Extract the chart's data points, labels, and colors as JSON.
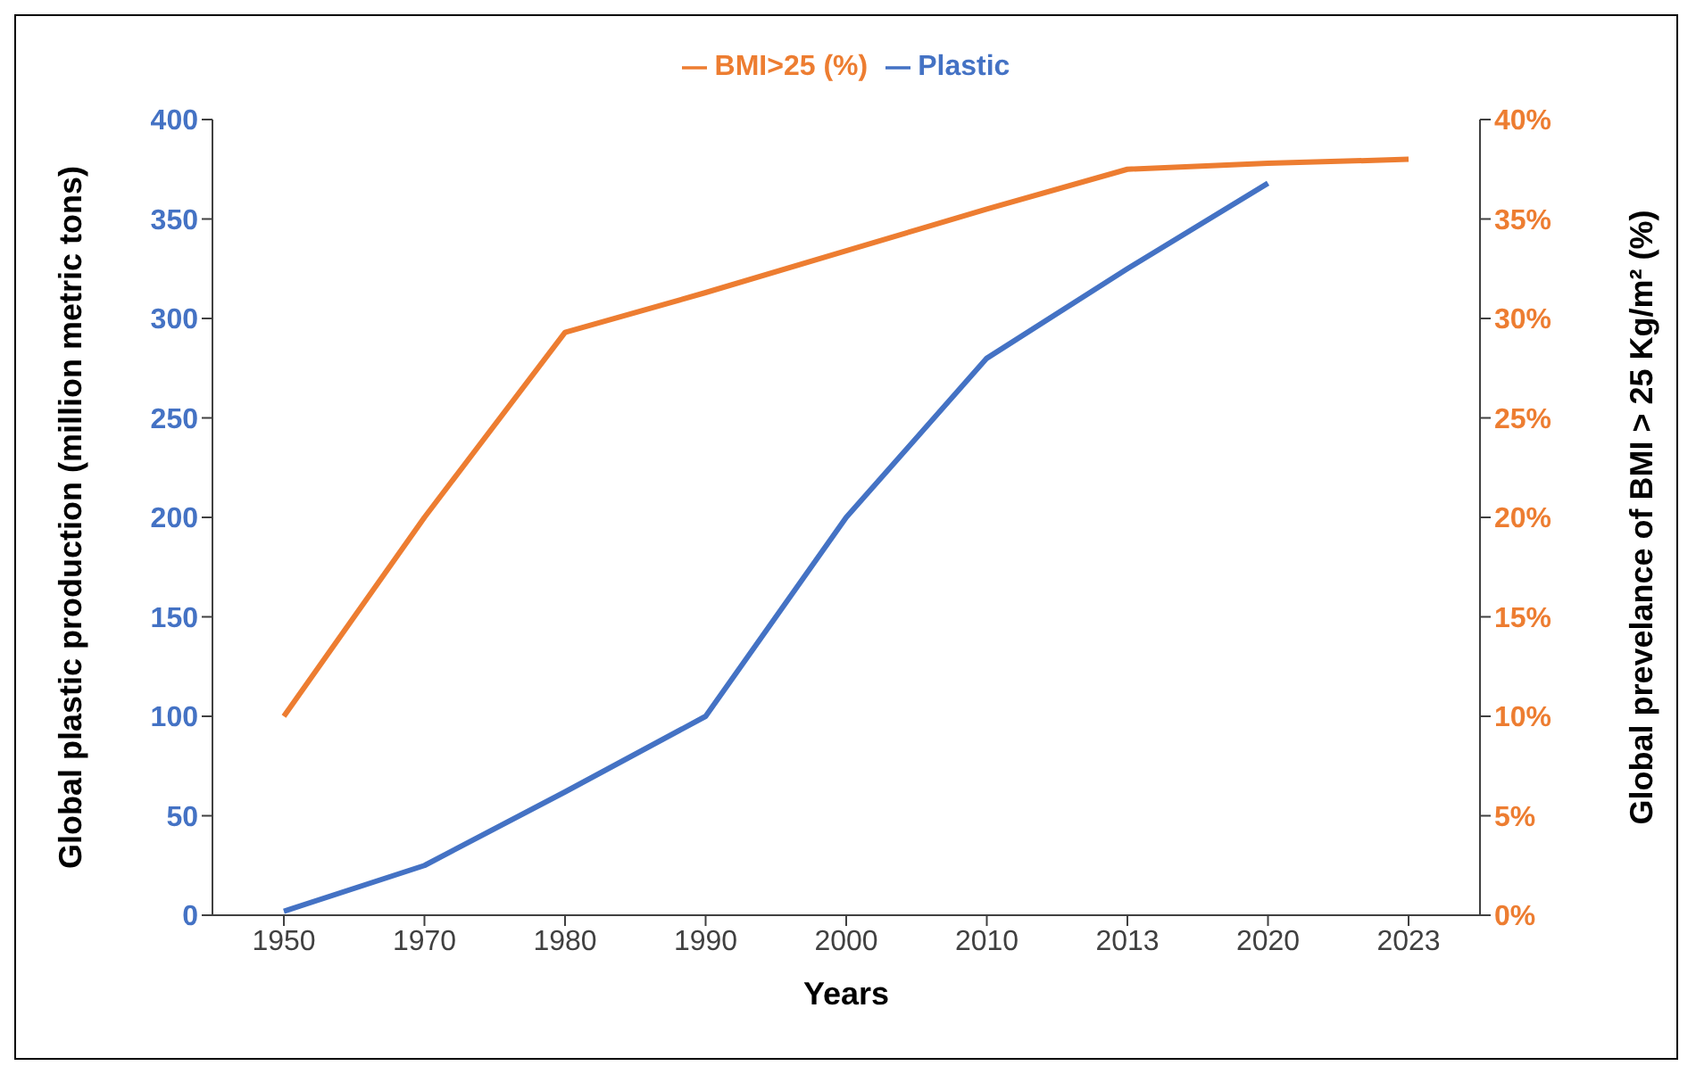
{
  "chart_data": {
    "type": "line",
    "xlabel": "Years",
    "ylabel": "Global plastic production (million metric tons)",
    "y2label": "Global prevelance of BMI > 25 Kg/m² (%)",
    "categories": [
      "1950",
      "1970",
      "1980",
      "1990",
      "2000",
      "2010",
      "2013",
      "2020",
      "2023"
    ],
    "series": [
      {
        "name": "Plastic",
        "color": "#4472c4",
        "values": [
          2,
          25,
          62,
          100,
          200,
          280,
          325,
          368,
          null
        ]
      },
      {
        "name": "BMI>25 (%)",
        "color": "#ed7d31",
        "axis": "y2",
        "values": [
          10,
          20,
          29.3,
          31.3,
          33.4,
          35.5,
          37.5,
          37.8,
          38
        ]
      }
    ],
    "ylim": [
      0,
      400
    ],
    "yticks": [
      0,
      50,
      100,
      150,
      200,
      250,
      300,
      350,
      400
    ],
    "y2lim": [
      0,
      40
    ],
    "y2ticks": [
      {
        "value": 0,
        "label": "0%"
      },
      {
        "value": 5,
        "label": "5%"
      },
      {
        "value": 10,
        "label": "10%"
      },
      {
        "value": 15,
        "label": "15%"
      },
      {
        "value": 20,
        "label": "20%"
      },
      {
        "value": 25,
        "label": "25%"
      },
      {
        "value": 30,
        "label": "30%"
      },
      {
        "value": 35,
        "label": "35%"
      },
      {
        "value": 40,
        "label": "40%"
      }
    ],
    "grid": false,
    "legend": "top",
    "marker": "none",
    "line_style": "solid"
  }
}
